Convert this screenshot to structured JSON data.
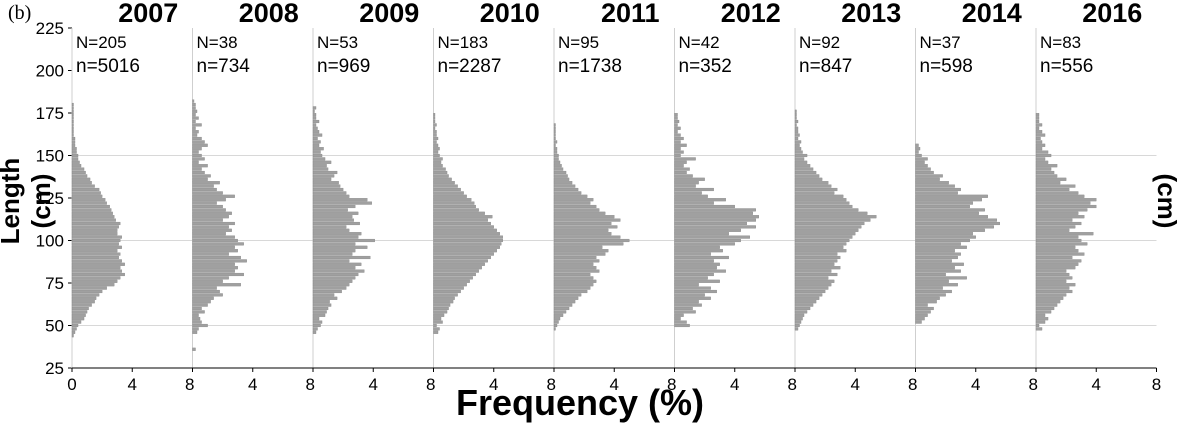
{
  "figure": {
    "panel_label": "(b)",
    "xlabel": "Frequency (%)",
    "ylabel_left": "Length (cm)",
    "ylabel_right": "Length (cm)"
  },
  "chart_data": {
    "type": "bar",
    "orientation": "horizontal",
    "ylim": [
      25,
      225
    ],
    "yticks": [
      25,
      50,
      75,
      100,
      125,
      150,
      175,
      200,
      225
    ],
    "xlim": [
      0,
      8
    ],
    "xticks": [
      0,
      4,
      8
    ],
    "bin_width_cm": 2,
    "bar_color": "#a0a0a0",
    "grid": "horizontal at 50, 100, 150",
    "panels": [
      {
        "year": "2007",
        "N": "N=205",
        "n": "n=5016",
        "bins": [
          44,
          46,
          48,
          50,
          52,
          54,
          56,
          58,
          60,
          62,
          64,
          66,
          68,
          70,
          72,
          74,
          76,
          78,
          80,
          82,
          84,
          86,
          88,
          90,
          92,
          94,
          96,
          98,
          100,
          102,
          104,
          106,
          108,
          110,
          112,
          114,
          116,
          118,
          120,
          122,
          124,
          126,
          128,
          130,
          132,
          134,
          136,
          138,
          140,
          142,
          144,
          146,
          148,
          150,
          152,
          154,
          156,
          158,
          160,
          162,
          164,
          166,
          168,
          170,
          172,
          174,
          176,
          178,
          180
        ],
        "values": [
          0.1,
          0.2,
          0.3,
          0.4,
          0.6,
          0.8,
          0.9,
          1.0,
          1.1,
          1.3,
          1.5,
          1.6,
          1.8,
          2.0,
          2.3,
          2.8,
          3.0,
          3.2,
          3.5,
          3.3,
          3.2,
          3.5,
          3.3,
          3.1,
          3.2,
          3.0,
          3.3,
          3.1,
          3.2,
          3.3,
          3.0,
          3.0,
          3.1,
          3.2,
          2.9,
          2.8,
          2.7,
          2.6,
          2.5,
          2.3,
          2.2,
          2.0,
          1.9,
          1.8,
          1.5,
          1.3,
          1.2,
          1.0,
          0.9,
          0.8,
          0.6,
          0.5,
          0.4,
          0.4,
          0.3,
          0.3,
          0.2,
          0.2,
          0.2,
          0.1,
          0.1,
          0.1,
          0.1,
          0.1,
          0.1,
          0.1,
          0.1,
          0.1,
          0.1
        ]
      },
      {
        "year": "2008",
        "N": "N=38",
        "n": "n=734",
        "bins": [
          36,
          46,
          48,
          50,
          52,
          54,
          56,
          58,
          60,
          62,
          64,
          66,
          68,
          70,
          72,
          74,
          76,
          78,
          80,
          82,
          84,
          86,
          88,
          90,
          92,
          94,
          96,
          98,
          100,
          102,
          104,
          106,
          108,
          110,
          112,
          114,
          116,
          118,
          120,
          122,
          124,
          126,
          128,
          130,
          132,
          134,
          136,
          138,
          140,
          142,
          144,
          146,
          148,
          150,
          152,
          154,
          156,
          158,
          160,
          162,
          164,
          166,
          168,
          170,
          172,
          174,
          176,
          178,
          180,
          182
        ],
        "values": [
          0.2,
          0.3,
          0.4,
          1.0,
          0.6,
          0.5,
          0.4,
          0.8,
          0.6,
          1.0,
          1.2,
          1.4,
          2.0,
          1.8,
          1.6,
          3.2,
          2.0,
          2.4,
          3.4,
          2.8,
          3.0,
          2.8,
          3.6,
          3.2,
          2.4,
          3.0,
          2.8,
          3.4,
          3.0,
          2.8,
          2.2,
          2.6,
          2.4,
          2.8,
          2.0,
          2.4,
          2.6,
          2.2,
          2.0,
          1.6,
          2.2,
          2.8,
          2.0,
          1.6,
          1.4,
          1.8,
          1.0,
          1.2,
          0.8,
          0.6,
          1.0,
          0.4,
          0.8,
          0.6,
          0.4,
          0.6,
          1.0,
          0.8,
          0.6,
          0.3,
          0.4,
          0.2,
          0.6,
          0.2,
          0.4,
          0.2,
          0.3,
          0.2,
          0.2,
          0.1
        ]
      },
      {
        "year": "2009",
        "N": "N=53",
        "n": "n=969",
        "bins": [
          46,
          48,
          50,
          52,
          54,
          56,
          58,
          60,
          62,
          64,
          66,
          68,
          70,
          72,
          74,
          76,
          78,
          80,
          82,
          84,
          86,
          88,
          90,
          92,
          94,
          96,
          98,
          100,
          102,
          104,
          106,
          108,
          110,
          112,
          114,
          116,
          118,
          120,
          122,
          124,
          126,
          128,
          130,
          132,
          134,
          136,
          138,
          140,
          142,
          144,
          146,
          148,
          150,
          152,
          154,
          156,
          158,
          160,
          162,
          164,
          166,
          168,
          170,
          172,
          174,
          176,
          178
        ],
        "values": [
          0.2,
          0.3,
          0.5,
          0.6,
          0.4,
          0.8,
          0.9,
          1.0,
          1.2,
          1.1,
          1.6,
          1.4,
          1.9,
          2.2,
          2.4,
          2.6,
          2.8,
          3.0,
          3.4,
          2.8,
          3.2,
          2.4,
          3.8,
          2.6,
          2.8,
          3.6,
          2.8,
          4.1,
          3.0,
          3.2,
          2.4,
          2.2,
          3.1,
          2.7,
          2.6,
          3.0,
          2.3,
          2.8,
          3.9,
          3.6,
          2.4,
          2.2,
          2.0,
          1.8,
          1.7,
          1.2,
          1.4,
          1.6,
          1.0,
          0.9,
          1.2,
          0.8,
          0.6,
          0.5,
          0.7,
          0.4,
          0.5,
          0.3,
          0.6,
          0.4,
          0.3,
          0.2,
          0.4,
          0.2,
          0.2,
          0.1,
          0.2
        ]
      },
      {
        "year": "2010",
        "N": "N=183",
        "n": "n=2287",
        "bins": [
          46,
          48,
          50,
          52,
          54,
          56,
          58,
          60,
          62,
          64,
          66,
          68,
          70,
          72,
          74,
          76,
          78,
          80,
          82,
          84,
          86,
          88,
          90,
          92,
          94,
          96,
          98,
          100,
          102,
          104,
          106,
          108,
          110,
          112,
          114,
          116,
          118,
          120,
          122,
          124,
          126,
          128,
          130,
          132,
          134,
          136,
          138,
          140,
          142,
          144,
          146,
          148,
          150,
          152,
          154,
          156,
          158,
          160,
          162,
          164,
          166,
          168,
          170,
          172,
          174
        ],
        "values": [
          0.3,
          0.4,
          0.2,
          0.6,
          0.5,
          0.7,
          0.9,
          1.0,
          1.1,
          1.3,
          1.4,
          1.6,
          1.8,
          2.0,
          2.2,
          2.4,
          2.6,
          2.8,
          3.0,
          3.2,
          3.4,
          3.6,
          3.8,
          4.0,
          4.2,
          4.4,
          4.5,
          4.6,
          4.6,
          4.4,
          4.2,
          4.0,
          3.8,
          3.6,
          3.9,
          3.4,
          3.0,
          2.8,
          2.7,
          2.5,
          2.2,
          2.0,
          1.8,
          1.6,
          1.4,
          1.2,
          1.0,
          0.9,
          0.8,
          0.6,
          0.5,
          0.6,
          0.4,
          0.3,
          0.4,
          0.3,
          0.2,
          0.3,
          0.2,
          0.2,
          0.1,
          0.2,
          0.1,
          0.1,
          0.1
        ]
      },
      {
        "year": "2011",
        "N": "N=95",
        "n": "n=1738",
        "bins": [
          48,
          50,
          52,
          54,
          56,
          58,
          60,
          62,
          64,
          66,
          68,
          70,
          72,
          74,
          76,
          78,
          80,
          82,
          84,
          86,
          88,
          90,
          92,
          94,
          96,
          98,
          100,
          102,
          104,
          106,
          108,
          110,
          112,
          114,
          116,
          118,
          120,
          122,
          124,
          126,
          128,
          130,
          132,
          134,
          136,
          138,
          140,
          142,
          144,
          146,
          148,
          150,
          152,
          154,
          156,
          158,
          160,
          162,
          164,
          166,
          168
        ],
        "values": [
          0.1,
          0.2,
          0.3,
          0.4,
          0.6,
          0.8,
          1.0,
          1.2,
          1.4,
          1.6,
          1.8,
          2.2,
          2.4,
          2.6,
          2.8,
          2.6,
          2.4,
          3.0,
          2.8,
          2.6,
          3.0,
          2.8,
          3.4,
          3.6,
          3.2,
          4.6,
          5.0,
          4.4,
          3.8,
          3.6,
          4.2,
          3.8,
          4.4,
          4.0,
          3.4,
          3.0,
          2.8,
          2.4,
          2.6,
          2.2,
          1.8,
          1.6,
          1.4,
          1.2,
          1.0,
          0.9,
          0.8,
          0.6,
          0.5,
          0.4,
          0.3,
          0.3,
          0.2,
          0.2,
          0.1,
          0.2,
          0.1,
          0.1,
          0.1,
          0.1,
          0.1
        ]
      },
      {
        "year": "2012",
        "N": "N=42",
        "n": "n=352",
        "bins": [
          50,
          52,
          54,
          56,
          58,
          60,
          62,
          64,
          66,
          68,
          70,
          72,
          74,
          76,
          78,
          80,
          82,
          84,
          86,
          88,
          90,
          92,
          94,
          96,
          98,
          100,
          102,
          104,
          106,
          108,
          110,
          112,
          114,
          116,
          118,
          120,
          122,
          124,
          126,
          128,
          130,
          132,
          134,
          136,
          138,
          140,
          142,
          144,
          146,
          148,
          150,
          152,
          154,
          156,
          158,
          160,
          162,
          164,
          166,
          168,
          170,
          172,
          174
        ],
        "values": [
          1.0,
          0.8,
          0.4,
          0.6,
          1.4,
          1.2,
          1.8,
          1.6,
          2.4,
          2.0,
          2.8,
          2.4,
          1.6,
          3.0,
          2.2,
          2.6,
          3.4,
          2.8,
          3.0,
          2.6,
          3.6,
          2.4,
          3.2,
          3.0,
          4.0,
          4.4,
          5.0,
          3.6,
          4.4,
          5.4,
          4.8,
          5.4,
          5.6,
          5.2,
          5.4,
          4.0,
          2.6,
          3.4,
          2.2,
          1.8,
          2.6,
          1.4,
          1.6,
          2.0,
          1.2,
          0.8,
          1.0,
          0.6,
          0.8,
          1.4,
          0.4,
          0.6,
          0.4,
          0.8,
          0.4,
          0.6,
          0.4,
          0.2,
          0.4,
          0.2,
          0.3,
          0.2,
          0.2
        ]
      },
      {
        "year": "2013",
        "N": "N=92",
        "n": "n=847",
        "bins": [
          48,
          50,
          52,
          54,
          56,
          58,
          60,
          62,
          64,
          66,
          68,
          70,
          72,
          74,
          76,
          78,
          80,
          82,
          84,
          86,
          88,
          90,
          92,
          94,
          96,
          98,
          100,
          102,
          104,
          106,
          108,
          110,
          112,
          114,
          116,
          118,
          120,
          122,
          124,
          126,
          128,
          130,
          132,
          134,
          136,
          138,
          140,
          142,
          144,
          146,
          148,
          150,
          152,
          154,
          156,
          158,
          160,
          162,
          164,
          166,
          168,
          170,
          172,
          174,
          176
        ],
        "values": [
          0.2,
          0.3,
          0.4,
          0.5,
          0.6,
          0.8,
          1.0,
          1.2,
          1.4,
          1.6,
          1.8,
          2.0,
          2.2,
          2.4,
          2.6,
          2.2,
          2.8,
          2.4,
          3.0,
          2.6,
          2.8,
          3.0,
          2.8,
          3.4,
          3.2,
          3.4,
          3.6,
          3.8,
          4.0,
          4.2,
          4.4,
          4.6,
          5.0,
          5.4,
          4.8,
          4.2,
          3.8,
          3.6,
          3.4,
          3.2,
          2.6,
          2.8,
          2.4,
          2.2,
          1.8,
          1.6,
          1.4,
          1.2,
          1.0,
          0.8,
          0.6,
          0.8,
          0.5,
          0.4,
          0.3,
          0.4,
          0.2,
          0.3,
          0.2,
          0.2,
          0.1,
          0.2,
          0.1,
          0.1,
          0.1
        ]
      },
      {
        "year": "2014",
        "N": "N=37",
        "n": "n=598",
        "bins": [
          52,
          54,
          56,
          58,
          60,
          62,
          64,
          66,
          68,
          70,
          72,
          74,
          76,
          78,
          80,
          82,
          84,
          86,
          88,
          90,
          92,
          94,
          96,
          98,
          100,
          102,
          104,
          106,
          108,
          110,
          112,
          114,
          116,
          118,
          120,
          122,
          124,
          126,
          128,
          130,
          132,
          134,
          136,
          138,
          140,
          142,
          144,
          146,
          148,
          150,
          152,
          154,
          156
        ],
        "values": [
          0.4,
          0.6,
          0.8,
          1.0,
          1.2,
          0.8,
          1.4,
          1.6,
          2.0,
          2.4,
          1.8,
          2.8,
          2.2,
          3.4,
          2.0,
          3.0,
          2.6,
          3.2,
          2.4,
          2.8,
          3.0,
          2.6,
          3.4,
          3.0,
          3.6,
          4.0,
          3.8,
          4.6,
          5.2,
          5.6,
          5.4,
          4.8,
          4.2,
          4.6,
          3.6,
          3.8,
          4.4,
          4.8,
          2.8,
          3.0,
          2.6,
          2.2,
          1.6,
          1.8,
          1.2,
          1.0,
          0.8,
          0.6,
          0.8,
          0.4,
          0.2,
          0.3,
          0.2
        ]
      },
      {
        "year": "2016",
        "N": "N=83",
        "n": "n=556",
        "bins": [
          48,
          50,
          52,
          54,
          56,
          58,
          60,
          62,
          64,
          66,
          68,
          70,
          72,
          74,
          76,
          78,
          80,
          82,
          84,
          86,
          88,
          90,
          92,
          94,
          96,
          98,
          100,
          102,
          104,
          106,
          108,
          110,
          112,
          114,
          116,
          118,
          120,
          122,
          124,
          126,
          128,
          130,
          132,
          134,
          136,
          138,
          140,
          142,
          144,
          146,
          148,
          150,
          152,
          154,
          156,
          158,
          160,
          162,
          164,
          166,
          168,
          170,
          172,
          174
        ],
        "values": [
          0.4,
          0.2,
          0.6,
          0.8,
          0.6,
          1.0,
          1.2,
          1.4,
          1.6,
          1.8,
          2.0,
          2.4,
          2.2,
          2.6,
          2.0,
          2.4,
          2.2,
          2.0,
          2.6,
          2.8,
          3.0,
          2.4,
          3.2,
          2.8,
          2.6,
          3.4,
          3.0,
          2.8,
          3.8,
          2.2,
          2.6,
          3.0,
          2.4,
          3.2,
          2.8,
          3.4,
          4.0,
          3.6,
          4.0,
          3.2,
          2.8,
          2.2,
          2.6,
          1.6,
          2.0,
          1.4,
          1.2,
          1.0,
          1.4,
          0.8,
          0.6,
          1.0,
          0.8,
          0.4,
          0.6,
          0.4,
          0.3,
          0.6,
          0.4,
          0.2,
          0.4,
          0.2,
          0.2,
          0.2
        ]
      }
    ]
  }
}
